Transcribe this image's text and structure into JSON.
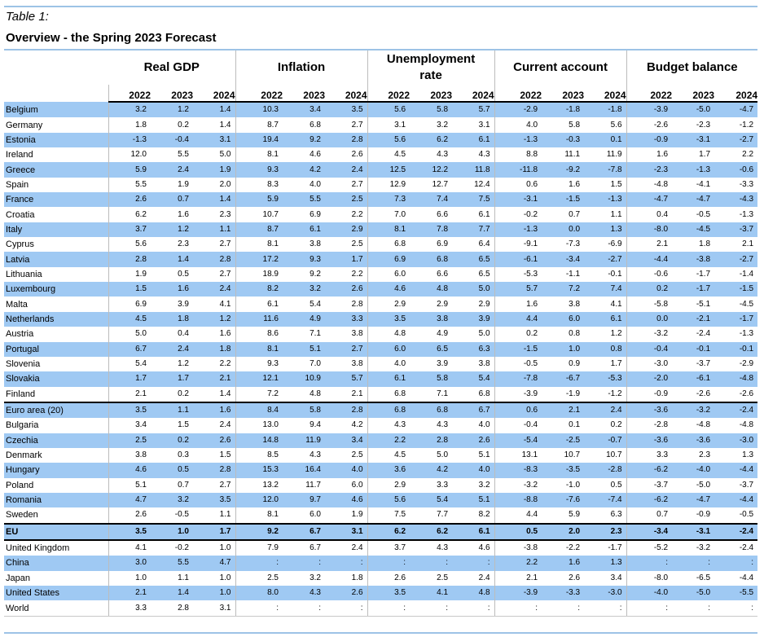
{
  "caption": "Table 1:",
  "title": "Overview - the Spring 2023 Forecast",
  "groups": [
    "Real GDP",
    "Inflation",
    "Unemployment rate",
    "Current account",
    "Budget balance"
  ],
  "years": [
    "2022",
    "2023",
    "2024"
  ],
  "rows": [
    {
      "name": "Belgium",
      "v": [
        "3.2",
        "1.2",
        "1.4",
        "10.3",
        "3.4",
        "3.5",
        "5.6",
        "5.8",
        "5.7",
        "-2.9",
        "-1.8",
        "-1.8",
        "-3.9",
        "-5.0",
        "-4.7"
      ]
    },
    {
      "name": "Germany",
      "v": [
        "1.8",
        "0.2",
        "1.4",
        "8.7",
        "6.8",
        "2.7",
        "3.1",
        "3.2",
        "3.1",
        "4.0",
        "5.8",
        "5.6",
        "-2.6",
        "-2.3",
        "-1.2"
      ]
    },
    {
      "name": "Estonia",
      "v": [
        "-1.3",
        "-0.4",
        "3.1",
        "19.4",
        "9.2",
        "2.8",
        "5.6",
        "6.2",
        "6.1",
        "-1.3",
        "-0.3",
        "0.1",
        "-0.9",
        "-3.1",
        "-2.7"
      ]
    },
    {
      "name": "Ireland",
      "v": [
        "12.0",
        "5.5",
        "5.0",
        "8.1",
        "4.6",
        "2.6",
        "4.5",
        "4.3",
        "4.3",
        "8.8",
        "11.1",
        "11.9",
        "1.6",
        "1.7",
        "2.2"
      ]
    },
    {
      "name": "Greece",
      "v": [
        "5.9",
        "2.4",
        "1.9",
        "9.3",
        "4.2",
        "2.4",
        "12.5",
        "12.2",
        "11.8",
        "-11.8",
        "-9.2",
        "-7.8",
        "-2.3",
        "-1.3",
        "-0.6"
      ]
    },
    {
      "name": "Spain",
      "v": [
        "5.5",
        "1.9",
        "2.0",
        "8.3",
        "4.0",
        "2.7",
        "12.9",
        "12.7",
        "12.4",
        "0.6",
        "1.6",
        "1.5",
        "-4.8",
        "-4.1",
        "-3.3"
      ]
    },
    {
      "name": "France",
      "v": [
        "2.6",
        "0.7",
        "1.4",
        "5.9",
        "5.5",
        "2.5",
        "7.3",
        "7.4",
        "7.5",
        "-3.1",
        "-1.5",
        "-1.3",
        "-4.7",
        "-4.7",
        "-4.3"
      ]
    },
    {
      "name": "Croatia",
      "v": [
        "6.2",
        "1.6",
        "2.3",
        "10.7",
        "6.9",
        "2.2",
        "7.0",
        "6.6",
        "6.1",
        "-0.2",
        "0.7",
        "1.1",
        "0.4",
        "-0.5",
        "-1.3"
      ]
    },
    {
      "name": "Italy",
      "v": [
        "3.7",
        "1.2",
        "1.1",
        "8.7",
        "6.1",
        "2.9",
        "8.1",
        "7.8",
        "7.7",
        "-1.3",
        "0.0",
        "1.3",
        "-8.0",
        "-4.5",
        "-3.7"
      ]
    },
    {
      "name": "Cyprus",
      "v": [
        "5.6",
        "2.3",
        "2.7",
        "8.1",
        "3.8",
        "2.5",
        "6.8",
        "6.9",
        "6.4",
        "-9.1",
        "-7.3",
        "-6.9",
        "2.1",
        "1.8",
        "2.1"
      ]
    },
    {
      "name": "Latvia",
      "v": [
        "2.8",
        "1.4",
        "2.8",
        "17.2",
        "9.3",
        "1.7",
        "6.9",
        "6.8",
        "6.5",
        "-6.1",
        "-3.4",
        "-2.7",
        "-4.4",
        "-3.8",
        "-2.7"
      ]
    },
    {
      "name": "Lithuania",
      "v": [
        "1.9",
        "0.5",
        "2.7",
        "18.9",
        "9.2",
        "2.2",
        "6.0",
        "6.6",
        "6.5",
        "-5.3",
        "-1.1",
        "-0.1",
        "-0.6",
        "-1.7",
        "-1.4"
      ]
    },
    {
      "name": "Luxembourg",
      "v": [
        "1.5",
        "1.6",
        "2.4",
        "8.2",
        "3.2",
        "2.6",
        "4.6",
        "4.8",
        "5.0",
        "5.7",
        "7.2",
        "7.4",
        "0.2",
        "-1.7",
        "-1.5"
      ]
    },
    {
      "name": "Malta",
      "v": [
        "6.9",
        "3.9",
        "4.1",
        "6.1",
        "5.4",
        "2.8",
        "2.9",
        "2.9",
        "2.9",
        "1.6",
        "3.8",
        "4.1",
        "-5.8",
        "-5.1",
        "-4.5"
      ]
    },
    {
      "name": "Netherlands",
      "v": [
        "4.5",
        "1.8",
        "1.2",
        "11.6",
        "4.9",
        "3.3",
        "3.5",
        "3.8",
        "3.9",
        "4.4",
        "6.0",
        "6.1",
        "0.0",
        "-2.1",
        "-1.7"
      ]
    },
    {
      "name": "Austria",
      "v": [
        "5.0",
        "0.4",
        "1.6",
        "8.6",
        "7.1",
        "3.8",
        "4.8",
        "4.9",
        "5.0",
        "0.2",
        "0.8",
        "1.2",
        "-3.2",
        "-2.4",
        "-1.3"
      ]
    },
    {
      "name": "Portugal",
      "v": [
        "6.7",
        "2.4",
        "1.8",
        "8.1",
        "5.1",
        "2.7",
        "6.0",
        "6.5",
        "6.3",
        "-1.5",
        "1.0",
        "0.8",
        "-0.4",
        "-0.1",
        "-0.1"
      ]
    },
    {
      "name": "Slovenia",
      "v": [
        "5.4",
        "1.2",
        "2.2",
        "9.3",
        "7.0",
        "3.8",
        "4.0",
        "3.9",
        "3.8",
        "-0.5",
        "0.9",
        "1.7",
        "-3.0",
        "-3.7",
        "-2.9"
      ]
    },
    {
      "name": "Slovakia",
      "v": [
        "1.7",
        "1.7",
        "2.1",
        "12.1",
        "10.9",
        "5.7",
        "6.1",
        "5.8",
        "5.4",
        "-7.8",
        "-6.7",
        "-5.3",
        "-2.0",
        "-6.1",
        "-4.8"
      ]
    },
    {
      "name": "Finland",
      "v": [
        "2.1",
        "0.2",
        "1.4",
        "7.2",
        "4.8",
        "2.1",
        "6.8",
        "7.1",
        "6.8",
        "-3.9",
        "-1.9",
        "-1.2",
        "-0.9",
        "-2.6",
        "-2.6"
      ]
    },
    {
      "name": "Euro area (20)",
      "v": [
        "3.5",
        "1.1",
        "1.6",
        "8.4",
        "5.8",
        "2.8",
        "6.8",
        "6.8",
        "6.7",
        "0.6",
        "2.1",
        "2.4",
        "-3.6",
        "-3.2",
        "-2.4"
      ]
    },
    {
      "name": "Bulgaria",
      "v": [
        "3.4",
        "1.5",
        "2.4",
        "13.0",
        "9.4",
        "4.2",
        "4.3",
        "4.3",
        "4.0",
        "-0.4",
        "0.1",
        "0.2",
        "-2.8",
        "-4.8",
        "-4.8"
      ]
    },
    {
      "name": "Czechia",
      "v": [
        "2.5",
        "0.2",
        "2.6",
        "14.8",
        "11.9",
        "3.4",
        "2.2",
        "2.8",
        "2.6",
        "-5.4",
        "-2.5",
        "-0.7",
        "-3.6",
        "-3.6",
        "-3.0"
      ]
    },
    {
      "name": "Denmark",
      "v": [
        "3.8",
        "0.3",
        "1.5",
        "8.5",
        "4.3",
        "2.5",
        "4.5",
        "5.0",
        "5.1",
        "13.1",
        "10.7",
        "10.7",
        "3.3",
        "2.3",
        "1.3"
      ]
    },
    {
      "name": "Hungary",
      "v": [
        "4.6",
        "0.5",
        "2.8",
        "15.3",
        "16.4",
        "4.0",
        "3.6",
        "4.2",
        "4.0",
        "-8.3",
        "-3.5",
        "-2.8",
        "-6.2",
        "-4.0",
        "-4.4"
      ]
    },
    {
      "name": "Poland",
      "v": [
        "5.1",
        "0.7",
        "2.7",
        "13.2",
        "11.7",
        "6.0",
        "2.9",
        "3.3",
        "3.2",
        "-3.2",
        "-1.0",
        "0.5",
        "-3.7",
        "-5.0",
        "-3.7"
      ]
    },
    {
      "name": "Romania",
      "v": [
        "4.7",
        "3.2",
        "3.5",
        "12.0",
        "9.7",
        "4.6",
        "5.6",
        "5.4",
        "5.1",
        "-8.8",
        "-7.6",
        "-7.4",
        "-6.2",
        "-4.7",
        "-4.4"
      ]
    },
    {
      "name": "Sweden",
      "v": [
        "2.6",
        "-0.5",
        "1.1",
        "8.1",
        "6.0",
        "1.9",
        "7.5",
        "7.7",
        "8.2",
        "4.4",
        "5.9",
        "6.3",
        "0.7",
        "-0.9",
        "-0.5"
      ]
    },
    {
      "name": "EU",
      "v": [
        "3.5",
        "1.0",
        "1.7",
        "9.2",
        "6.7",
        "3.1",
        "6.2",
        "6.2",
        "6.1",
        "0.5",
        "2.0",
        "2.3",
        "-3.4",
        "-3.1",
        "-2.4"
      ]
    },
    {
      "name": "United Kingdom",
      "v": [
        "4.1",
        "-0.2",
        "1.0",
        "7.9",
        "6.7",
        "2.4",
        "3.7",
        "4.3",
        "4.6",
        "-3.8",
        "-2.2",
        "-1.7",
        "-5.2",
        "-3.2",
        "-2.4"
      ]
    },
    {
      "name": "China",
      "v": [
        "3.0",
        "5.5",
        "4.7",
        ":",
        ":",
        ":",
        ":",
        ":",
        ":",
        "2.2",
        "1.6",
        "1.3",
        ":",
        ":",
        ":"
      ]
    },
    {
      "name": "Japan",
      "v": [
        "1.0",
        "1.1",
        "1.0",
        "2.5",
        "3.2",
        "1.8",
        "2.6",
        "2.5",
        "2.4",
        "2.1",
        "2.6",
        "3.4",
        "-8.0",
        "-6.5",
        "-4.4"
      ]
    },
    {
      "name": "United States",
      "v": [
        "2.1",
        "1.4",
        "1.0",
        "8.0",
        "4.3",
        "2.6",
        "3.5",
        "4.1",
        "4.8",
        "-3.9",
        "-3.3",
        "-3.0",
        "-4.0",
        "-5.0",
        "-5.5"
      ]
    },
    {
      "name": "World",
      "v": [
        "3.3",
        "2.8",
        "3.1",
        ":",
        ":",
        ":",
        ":",
        ":",
        ":",
        ":",
        ":",
        ":",
        ":",
        ":",
        ":"
      ]
    }
  ],
  "colors": {
    "highlight": "#9fc9f3",
    "rule": "#9dc3e6"
  }
}
